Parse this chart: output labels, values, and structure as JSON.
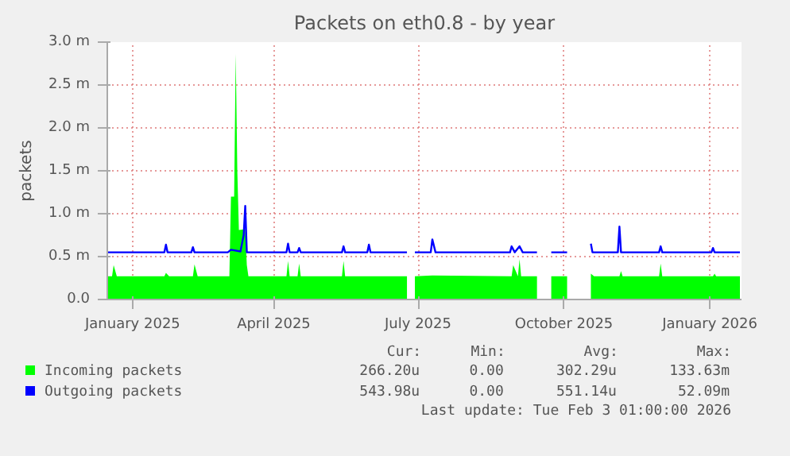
{
  "chart_data": {
    "type": "area",
    "title": "Packets on eth0.8 - by year",
    "ylabel": "packets",
    "xlim": [
      "2024-12-30",
      "2026-02-03"
    ],
    "xticks": [
      {
        "value": "2025-01-15",
        "label": "January 2025"
      },
      {
        "value": "2025-04-14",
        "label": "April 2025"
      },
      {
        "value": "2025-07-14",
        "label": "July 2025"
      },
      {
        "value": "2025-10-14",
        "label": "October 2025"
      },
      {
        "value": "2026-01-14",
        "label": "January 2026"
      }
    ],
    "ylim": [
      0,
      3.0
    ],
    "yticks": [
      {
        "value": 0,
        "label": "0.0"
      },
      {
        "value": 0.5,
        "label": "0.5 m"
      },
      {
        "value": 1.0,
        "label": "1.0 m"
      },
      {
        "value": 1.5,
        "label": "1.5 m"
      },
      {
        "value": 2.0,
        "label": "2.0 m"
      },
      {
        "value": 2.5,
        "label": "2.5 m"
      },
      {
        "value": 3.0,
        "label": "3.0 m"
      }
    ],
    "grid": true,
    "legend": "bottom",
    "annotations": [
      "Cur:",
      "Min:",
      "Avg:",
      "Max:",
      "266.20u",
      "0.00",
      "302.29u",
      "133.63m",
      "543.98u",
      "0.00",
      "551.14u",
      "52.09m",
      "Last update: Tue Feb  3 01:00:00 2026"
    ],
    "series": [
      {
        "name": "Incoming packets",
        "color": "#00ff00",
        "x": [
          "2024-12-30",
          "2025-01-02",
          "2025-01-03",
          "2025-01-05",
          "2025-02-04",
          "2025-02-05",
          "2025-02-07",
          "2025-02-22",
          "2025-02-23",
          "2025-02-25",
          "2025-03-17",
          "2025-03-18",
          "2025-03-20",
          "2025-03-21",
          "2025-03-22",
          "2025-03-23",
          "2025-03-27",
          "2025-03-28",
          "2025-03-29",
          "2025-04-22",
          "2025-04-23",
          "2025-04-24",
          "2025-04-29",
          "2025-04-30",
          "2025-05-01",
          "2025-05-27",
          "2025-05-28",
          "2025-05-29",
          "2025-07-07",
          "2025-07-08",
          "2025-07-11",
          "2025-07-12",
          "2025-07-23",
          "2025-09-11",
          "2025-09-12",
          "2025-09-15",
          "2025-09-16",
          "2025-09-17",
          "2025-09-27",
          "2025-09-29",
          "2025-10-05",
          "2025-10-06",
          "2025-10-16",
          "2025-10-18",
          "2025-10-30",
          "2025-10-31",
          "2025-11-02",
          "2025-11-18",
          "2025-11-19",
          "2025-11-20",
          "2025-12-13",
          "2025-12-14",
          "2025-12-15",
          "2026-01-16",
          "2026-01-17",
          "2026-01-18",
          "2026-02-02"
        ],
        "values": [
          0.27,
          0.27,
          0.4,
          0.27,
          0.27,
          0.31,
          0.27,
          0.27,
          0.41,
          0.27,
          0.27,
          1.2,
          1.2,
          2.86,
          1.5,
          0.81,
          0.82,
          0.4,
          0.27,
          0.27,
          0.45,
          0.27,
          0.27,
          0.42,
          0.27,
          0.27,
          0.45,
          0.27,
          0.27,
          null,
          null,
          0.27,
          0.28,
          0.27,
          0.4,
          0.27,
          0.47,
          0.27,
          0.27,
          null,
          null,
          0.27,
          0.27,
          null,
          null,
          0.3,
          0.27,
          0.27,
          0.33,
          0.27,
          0.27,
          0.42,
          0.27,
          0.27,
          0.3,
          0.27,
          0.27
        ]
      },
      {
        "name": "Outgoing packets",
        "color": "#0000ff",
        "type": "line",
        "x": [
          "2024-12-30",
          "2025-02-04",
          "2025-02-05",
          "2025-02-06",
          "2025-02-21",
          "2025-02-22",
          "2025-02-23",
          "2025-03-16",
          "2025-03-18",
          "2025-03-24",
          "2025-03-26",
          "2025-03-27",
          "2025-03-28",
          "2025-04-22",
          "2025-04-23",
          "2025-04-24",
          "2025-04-29",
          "2025-04-30",
          "2025-05-01",
          "2025-05-27",
          "2025-05-28",
          "2025-05-29",
          "2025-06-12",
          "2025-06-13",
          "2025-06-14",
          "2025-07-07",
          "2025-07-08",
          "2025-07-11",
          "2025-07-12",
          "2025-07-22",
          "2025-07-23",
          "2025-07-25",
          "2025-09-10",
          "2025-09-11",
          "2025-09-13",
          "2025-09-16",
          "2025-09-18",
          "2025-09-27",
          "2025-09-29",
          "2025-10-05",
          "2025-10-06",
          "2025-10-16",
          "2025-10-18",
          "2025-10-30",
          "2025-10-31",
          "2025-11-01",
          "2025-11-17",
          "2025-11-18",
          "2025-11-19",
          "2025-12-13",
          "2025-12-14",
          "2025-12-15",
          "2026-01-15",
          "2026-01-16",
          "2026-01-17",
          "2026-02-02"
        ],
        "values": [
          0.55,
          0.55,
          0.64,
          0.55,
          0.55,
          0.61,
          0.55,
          0.55,
          0.58,
          0.56,
          0.75,
          1.09,
          0.55,
          0.55,
          0.65,
          0.55,
          0.55,
          0.6,
          0.55,
          0.55,
          0.62,
          0.55,
          0.55,
          0.64,
          0.55,
          0.55,
          null,
          null,
          0.55,
          0.55,
          0.7,
          0.55,
          0.55,
          0.62,
          0.55,
          0.62,
          0.55,
          0.55,
          null,
          null,
          0.55,
          0.55,
          null,
          null,
          0.65,
          0.55,
          0.55,
          0.85,
          0.55,
          0.55,
          0.62,
          0.55,
          0.55,
          0.6,
          0.55,
          0.55
        ]
      }
    ]
  }
}
